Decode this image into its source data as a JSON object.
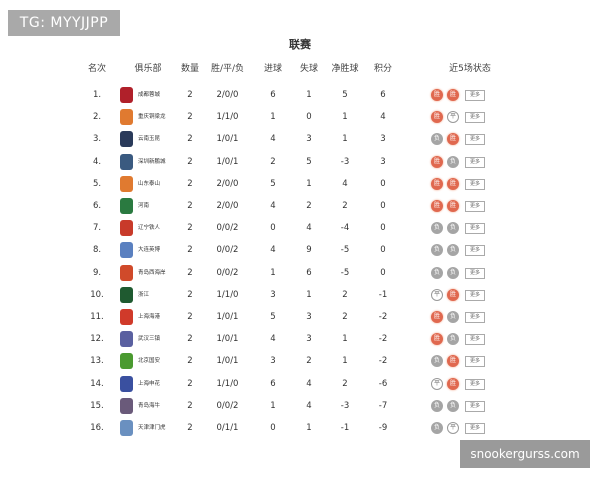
{
  "watermarks": {
    "top_left": "TG: MYYJJPP",
    "bottom_right": "snookergurss.com"
  },
  "title": "联赛",
  "headers": {
    "rank": "名次",
    "club": "俱乐部",
    "played": "数量",
    "wdl": "胜/平/负",
    "gf": "进球",
    "ga": "失球",
    "gd": "净胜球",
    "pts": "积分",
    "form": "近5场状态"
  },
  "colors": {
    "win": "#e0684f",
    "draw": "#ffffff",
    "loss": "#a5a5a5"
  },
  "form_labels": {
    "W": "胜",
    "D": "平",
    "L": "负"
  },
  "more_label": "更多",
  "rows": [
    {
      "rank": "1.",
      "club": "成都蓉城",
      "logo_color": "#b0202a",
      "played": "2",
      "wdl": "2/0/0",
      "gf": "6",
      "ga": "1",
      "gd": "5",
      "pts": "6",
      "form": [
        "W",
        "W"
      ]
    },
    {
      "rank": "2.",
      "club": "重庆铜梁龙",
      "logo_color": "#e07a30",
      "played": "2",
      "wdl": "1/1/0",
      "gf": "1",
      "ga": "0",
      "gd": "1",
      "pts": "4",
      "form": [
        "W",
        "D"
      ]
    },
    {
      "rank": "3.",
      "club": "云南玉昆",
      "logo_color": "#2a3a5a",
      "played": "2",
      "wdl": "1/0/1",
      "gf": "4",
      "ga": "3",
      "gd": "1",
      "pts": "3",
      "form": [
        "L",
        "W"
      ]
    },
    {
      "rank": "4.",
      "club": "深圳新鹏城",
      "logo_color": "#3a5a80",
      "played": "2",
      "wdl": "1/0/1",
      "gf": "2",
      "ga": "5",
      "gd": "-3",
      "pts": "3",
      "form": [
        "W",
        "L"
      ]
    },
    {
      "rank": "5.",
      "club": "山东泰山",
      "logo_color": "#e07a30",
      "played": "2",
      "wdl": "2/0/0",
      "gf": "5",
      "ga": "1",
      "gd": "4",
      "pts": "0",
      "form": [
        "W",
        "W"
      ]
    },
    {
      "rank": "6.",
      "club": "河南",
      "logo_color": "#2a7a40",
      "played": "2",
      "wdl": "2/0/0",
      "gf": "4",
      "ga": "2",
      "gd": "2",
      "pts": "0",
      "form": [
        "W",
        "W"
      ]
    },
    {
      "rank": "7.",
      "club": "辽宁铁人",
      "logo_color": "#c83a2a",
      "played": "2",
      "wdl": "0/0/2",
      "gf": "0",
      "ga": "4",
      "gd": "-4",
      "pts": "0",
      "form": [
        "L",
        "L"
      ]
    },
    {
      "rank": "8.",
      "club": "大连英博",
      "logo_color": "#5a80c0",
      "played": "2",
      "wdl": "0/0/2",
      "gf": "4",
      "ga": "9",
      "gd": "-5",
      "pts": "0",
      "form": [
        "L",
        "L"
      ]
    },
    {
      "rank": "9.",
      "club": "青岛西海岸",
      "logo_color": "#d04a2a",
      "played": "2",
      "wdl": "0/0/2",
      "gf": "1",
      "ga": "6",
      "gd": "-5",
      "pts": "0",
      "form": [
        "L",
        "L"
      ]
    },
    {
      "rank": "10.",
      "club": "浙江",
      "logo_color": "#1f5a30",
      "played": "2",
      "wdl": "1/1/0",
      "gf": "3",
      "ga": "1",
      "gd": "2",
      "pts": "-1",
      "form": [
        "D",
        "W"
      ]
    },
    {
      "rank": "11.",
      "club": "上海海港",
      "logo_color": "#d03a2a",
      "played": "2",
      "wdl": "1/0/1",
      "gf": "5",
      "ga": "3",
      "gd": "2",
      "pts": "-2",
      "form": [
        "W",
        "L"
      ]
    },
    {
      "rank": "12.",
      "club": "武汉三镇",
      "logo_color": "#5a60a0",
      "played": "2",
      "wdl": "1/0/1",
      "gf": "4",
      "ga": "3",
      "gd": "1",
      "pts": "-2",
      "form": [
        "W",
        "L"
      ]
    },
    {
      "rank": "13.",
      "club": "北京国安",
      "logo_color": "#4a9a30",
      "played": "2",
      "wdl": "1/0/1",
      "gf": "3",
      "ga": "2",
      "gd": "1",
      "pts": "-2",
      "form": [
        "L",
        "W"
      ]
    },
    {
      "rank": "14.",
      "club": "上海申花",
      "logo_color": "#3a50a0",
      "played": "2",
      "wdl": "1/1/0",
      "gf": "6",
      "ga": "4",
      "gd": "2",
      "pts": "-6",
      "form": [
        "D",
        "W"
      ]
    },
    {
      "rank": "15.",
      "club": "青岛海牛",
      "logo_color": "#6a5a7a",
      "played": "2",
      "wdl": "0/0/2",
      "gf": "1",
      "ga": "4",
      "gd": "-3",
      "pts": "-7",
      "form": [
        "L",
        "L"
      ]
    },
    {
      "rank": "16.",
      "club": "天津津门虎",
      "logo_color": "#6a90c0",
      "played": "2",
      "wdl": "0/1/1",
      "gf": "0",
      "ga": "1",
      "gd": "-1",
      "pts": "-9",
      "form": [
        "L",
        "D"
      ]
    }
  ]
}
